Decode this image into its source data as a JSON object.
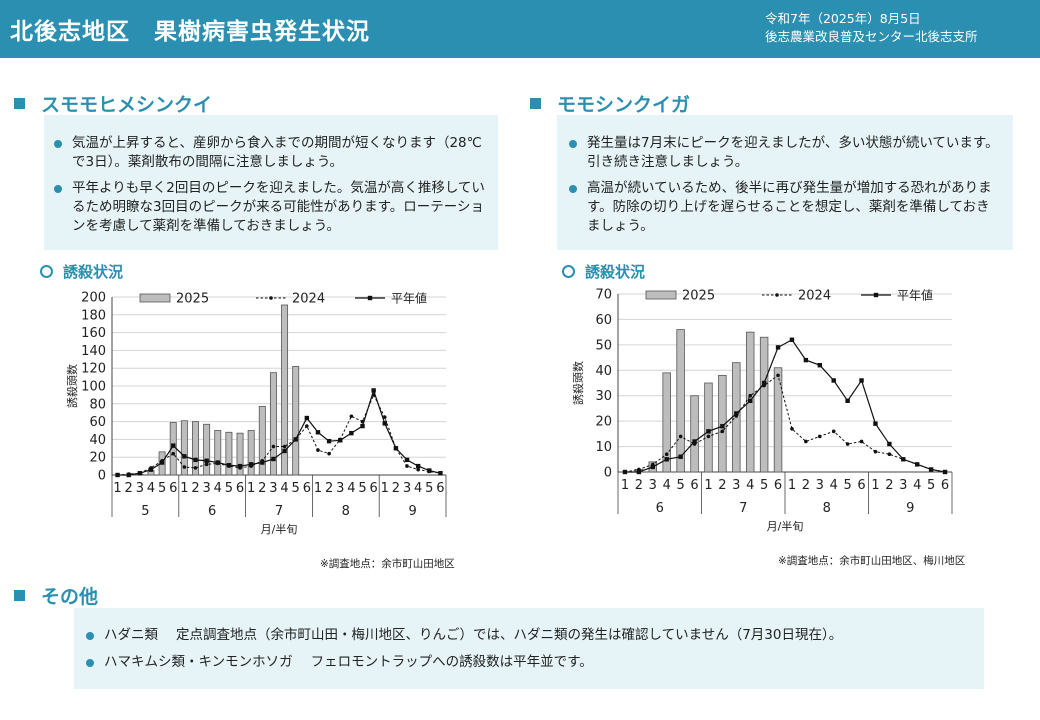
{
  "header": {
    "title": "北後志地区　果樹病害虫発生状況",
    "date": "令和7年（2025年）8月5日",
    "org": "後志農業改良普及センター北後志支所"
  },
  "colors": {
    "accent": "#2a8fb0",
    "box": "#e6f4f8",
    "bar": "#bdbdbd"
  },
  "left": {
    "title": "スモモヒメシンクイ",
    "bullets": [
      "気温が上昇すると、産卵から食入までの期間が短くなります（28℃で3日）。薬剤散布の間隔に注意しましょう。",
      "平年よりも早く2回目のピークを迎えました。気温が高く推移しているため明瞭な3回目のピークが来る可能性があります。ローテーションを考慮して薬剤を準備しておきましょう。"
    ],
    "subheading": "誘殺状況",
    "footnote": "※調査地点：余市町山田地区"
  },
  "right": {
    "title": "モモシンクイガ",
    "bullets": [
      "発生量は7月末にピークを迎えましたが、多い状態が続いています。引き続き注意しましょう。",
      "高温が続いているため、後半に再び発生量が増加する恐れがあります。防除の切り上げを遅らせることを想定し、薬剤を準備しておきましょう。"
    ],
    "subheading": "誘殺状況",
    "footnote": "※調査地点：余市町山田地区、梅川地区"
  },
  "other": {
    "title": "その他",
    "items": [
      {
        "label": "ハダニ類",
        "text": "定点調査地点（余市町山田・梅川地区、りんご）では、ハダニ類の発生は確認していません（7月30日現在）。"
      },
      {
        "label": "ハマキムシ類・キンモンホソガ",
        "text": "フェロモントラップへの誘殺数は平年並です。"
      }
    ]
  },
  "chart_data": [
    {
      "type": "bar+line",
      "title": "スモモヒメシンクイ 誘殺状況",
      "ylabel": "誘殺頭数",
      "xlabel": "月/半旬",
      "ylim": [
        0,
        200
      ],
      "yticks": [
        0,
        20,
        40,
        60,
        80,
        100,
        120,
        140,
        160,
        180,
        200
      ],
      "months": [
        "5",
        "6",
        "7",
        "8",
        "9"
      ],
      "categories": [
        "1",
        "2",
        "3",
        "4",
        "5",
        "6",
        "1",
        "2",
        "3",
        "4",
        "5",
        "6",
        "1",
        "2",
        "3",
        "4",
        "5",
        "6",
        "1",
        "2",
        "3",
        "4",
        "5",
        "6",
        "1",
        "2",
        "3",
        "4",
        "5",
        "6"
      ],
      "legend": [
        "2025",
        "2024",
        "平年値"
      ],
      "series": [
        {
          "name": "2025",
          "kind": "bar",
          "values": [
            0,
            0,
            1,
            5,
            26,
            59,
            61,
            60,
            57,
            50,
            48,
            47,
            50,
            77,
            115,
            191,
            122,
            null,
            null,
            null,
            null,
            null,
            null,
            null,
            null,
            null,
            null,
            null,
            null,
            null
          ]
        },
        {
          "name": "2024",
          "kind": "dashed-line",
          "values": [
            0,
            1,
            2,
            8,
            16,
            24,
            9,
            8,
            12,
            13,
            10,
            8,
            10,
            16,
            32,
            32,
            40,
            55,
            28,
            24,
            40,
            66,
            60,
            90,
            65,
            30,
            10,
            6,
            4,
            2
          ]
        },
        {
          "name": "平年値",
          "kind": "solid-line",
          "values": [
            0,
            0,
            2,
            6,
            14,
            33,
            21,
            17,
            16,
            14,
            11,
            10,
            12,
            14,
            18,
            27,
            40,
            64,
            48,
            38,
            39,
            47,
            55,
            95,
            58,
            30,
            17,
            10,
            5,
            2
          ]
        }
      ]
    },
    {
      "type": "bar+line",
      "title": "モモシンクイガ 誘殺状況",
      "ylabel": "誘殺頭数",
      "xlabel": "月/半旬",
      "ylim": [
        0,
        70
      ],
      "yticks": [
        0,
        10,
        20,
        30,
        40,
        50,
        60,
        70
      ],
      "months": [
        "6",
        "7",
        "8",
        "9"
      ],
      "categories": [
        "1",
        "2",
        "3",
        "4",
        "5",
        "6",
        "1",
        "2",
        "3",
        "4",
        "5",
        "6",
        "1",
        "2",
        "3",
        "4",
        "5",
        "6",
        "1",
        "2",
        "3",
        "4",
        "5",
        "6"
      ],
      "legend": [
        "2025",
        "2024",
        "平年値"
      ],
      "series": [
        {
          "name": "2025",
          "kind": "bar",
          "values": [
            0,
            1,
            4,
            39,
            56,
            30,
            35,
            38,
            43,
            55,
            53,
            41,
            null,
            null,
            null,
            null,
            null,
            null,
            null,
            null,
            null,
            null,
            null,
            null
          ]
        },
        {
          "name": "2024",
          "kind": "dashed-line",
          "values": [
            0,
            1,
            3,
            7,
            14,
            11,
            14,
            16,
            22,
            30,
            34,
            38,
            17,
            12,
            14,
            16,
            11,
            12,
            8,
            7,
            5,
            3,
            1,
            0
          ]
        },
        {
          "name": "平年値",
          "kind": "solid-line",
          "values": [
            0,
            0,
            2,
            5,
            6,
            12,
            16,
            18,
            23,
            28,
            35,
            49,
            52,
            44,
            42,
            36,
            28,
            36,
            19,
            11,
            5,
            3,
            1,
            0
          ]
        }
      ]
    }
  ]
}
